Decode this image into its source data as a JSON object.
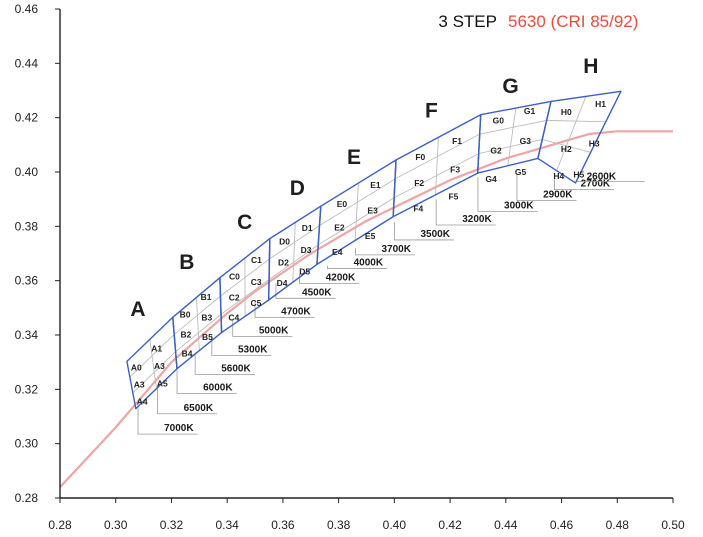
{
  "chart_data": {
    "type": "line",
    "title": "3 STEP",
    "subtitle": "5630 (CRI 85/92)",
    "colors": {
      "bins": "#3a5fc8",
      "locus": "#f2a3a3",
      "subtitle": "#ef4b3a",
      "callout": "#9a9a9a",
      "grid": "#bcbcbc"
    },
    "xlim": [
      0.28,
      0.5
    ],
    "ylim": [
      0.28,
      0.46
    ],
    "x_ticks": [
      "0.28",
      "0.30",
      "0.32",
      "0.34",
      "0.36",
      "0.38",
      "0.40",
      "0.42",
      "0.44",
      "0.46",
      "0.48",
      "0.50"
    ],
    "y_ticks": [
      "0.28",
      "0.30",
      "0.32",
      "0.34",
      "0.36",
      "0.38",
      "0.40",
      "0.42",
      "0.44",
      "0.46"
    ],
    "grid": false,
    "series": [
      {
        "type": "line",
        "points": [
          [
            0.28,
            0.284
          ],
          [
            0.29,
            0.295
          ],
          [
            0.3,
            0.306
          ],
          [
            0.31,
            0.318
          ],
          [
            0.32,
            0.33
          ],
          [
            0.33,
            0.339
          ],
          [
            0.34,
            0.348
          ],
          [
            0.35,
            0.356
          ],
          [
            0.36,
            0.363
          ],
          [
            0.37,
            0.37
          ],
          [
            0.38,
            0.376
          ],
          [
            0.39,
            0.382
          ],
          [
            0.4,
            0.387
          ],
          [
            0.41,
            0.392
          ],
          [
            0.42,
            0.397
          ],
          [
            0.43,
            0.401
          ],
          [
            0.44,
            0.405
          ],
          [
            0.45,
            0.408
          ],
          [
            0.46,
            0.411
          ],
          [
            0.47,
            0.414
          ],
          [
            0.48,
            0.415
          ],
          [
            0.5,
            0.415
          ]
        ]
      }
    ],
    "bins": [
      {
        "label": "A",
        "label_at": [
          0.308,
          0.347
        ],
        "corners": [
          [
            0.304,
            0.3303
          ],
          [
            0.3205,
            0.3465
          ],
          [
            0.322,
            0.3276
          ],
          [
            0.3072,
            0.3129
          ]
        ],
        "cells": [
          {
            "label": "A0",
            "at": [
              0.3074,
              0.3281
            ]
          },
          {
            "label": "A1",
            "at": [
              0.3147,
              0.335
            ]
          },
          {
            "label": "A3",
            "at": [
              0.3084,
              0.3217
            ]
          },
          {
            "label": "A3",
            "at": [
              0.3157,
              0.3285
            ]
          },
          {
            "label": "A4",
            "at": [
              0.3095,
              0.3155
            ]
          },
          {
            "label": "A5",
            "at": [
              0.3167,
              0.3221
            ]
          }
        ]
      },
      {
        "label": "B",
        "label_at": [
          0.3255,
          0.3643
        ],
        "corners": [
          [
            0.3205,
            0.3465
          ],
          [
            0.3374,
            0.3611
          ],
          [
            0.338,
            0.3409
          ],
          [
            0.322,
            0.3276
          ]
        ],
        "cells": [
          {
            "label": "B0",
            "at": [
              0.3249,
              0.3475
            ]
          },
          {
            "label": "B1",
            "at": [
              0.3324,
              0.3539
            ]
          },
          {
            "label": "B2",
            "at": [
              0.3252,
              0.3401
            ]
          },
          {
            "label": "B3",
            "at": [
              0.3327,
              0.3464
            ]
          },
          {
            "label": "B4",
            "at": [
              0.3256,
              0.3332
            ]
          },
          {
            "label": "B5",
            "at": [
              0.3329,
              0.3392
            ]
          }
        ]
      },
      {
        "label": "C",
        "label_at": [
          0.3463,
          0.379
        ],
        "corners": [
          [
            0.3374,
            0.3611
          ],
          [
            0.3553,
            0.3755
          ],
          [
            0.3549,
            0.3529
          ],
          [
            0.338,
            0.3409
          ]
        ],
        "cells": [
          {
            "label": "C0",
            "at": [
              0.3426,
              0.3615
            ]
          },
          {
            "label": "C1",
            "at": [
              0.3505,
              0.3676
            ]
          },
          {
            "label": "C2",
            "at": [
              0.3425,
              0.3538
            ]
          },
          {
            "label": "C3",
            "at": [
              0.3504,
              0.3595
            ]
          },
          {
            "label": "C4",
            "at": [
              0.3424,
              0.3465
            ]
          },
          {
            "label": "C5",
            "at": [
              0.3503,
              0.3518
            ]
          }
        ]
      },
      {
        "label": "D",
        "label_at": [
          0.3652,
          0.3915
        ],
        "corners": [
          [
            0.3553,
            0.3755
          ],
          [
            0.3736,
            0.3874
          ],
          [
            0.3722,
            0.366
          ],
          [
            0.3549,
            0.3529
          ]
        ],
        "cells": [
          {
            "label": "D0",
            "at": [
              0.3606,
              0.3745
            ]
          },
          {
            "label": "D1",
            "at": [
              0.3687,
              0.3794
            ]
          },
          {
            "label": "D2",
            "at": [
              0.3602,
              0.3667
            ]
          },
          {
            "label": "D3",
            "at": [
              0.3683,
              0.3713
            ]
          },
          {
            "label": "D4",
            "at": [
              0.3597,
              0.3592
            ]
          },
          {
            "label": "D5",
            "at": [
              0.3678,
              0.3634
            ]
          }
        ]
      },
      {
        "label": "E",
        "label_at": [
          0.3855,
          0.403
        ],
        "corners": [
          [
            0.3736,
            0.3874
          ],
          [
            0.4006,
            0.4044
          ],
          [
            0.3996,
            0.3836
          ],
          [
            0.3722,
            0.366
          ]
        ],
        "cells": [
          {
            "label": "E0",
            "at": [
              0.3812,
              0.3882
            ]
          },
          {
            "label": "E1",
            "at": [
              0.3932,
              0.3953
            ]
          },
          {
            "label": "E2",
            "at": [
              0.3803,
              0.3795
            ]
          },
          {
            "label": "E3",
            "at": [
              0.3922,
              0.3858
            ]
          },
          {
            "label": "E4",
            "at": [
              0.3795,
              0.3706
            ]
          },
          {
            "label": "E5",
            "at": [
              0.3913,
              0.3764
            ]
          }
        ]
      },
      {
        "label": "F",
        "label_at": [
          0.4133,
          0.42
        ],
        "corners": [
          [
            0.4006,
            0.4044
          ],
          [
            0.431,
            0.4211
          ],
          [
            0.4299,
            0.3996
          ],
          [
            0.3996,
            0.3836
          ]
        ],
        "cells": [
          {
            "label": "F0",
            "at": [
              0.4093,
              0.4055
            ]
          },
          {
            "label": "F1",
            "at": [
              0.4225,
              0.4115
            ]
          },
          {
            "label": "F2",
            "at": [
              0.4089,
              0.396
            ]
          },
          {
            "label": "F3",
            "at": [
              0.4218,
              0.401
            ]
          },
          {
            "label": "F4",
            "at": [
              0.4086,
              0.3865
            ]
          },
          {
            "label": "F5",
            "at": [
              0.4212,
              0.391
            ]
          }
        ]
      },
      {
        "label": "G",
        "label_at": [
          0.4417,
          0.429
        ],
        "corners": [
          [
            0.431,
            0.4211
          ],
          [
            0.4562,
            0.426
          ],
          [
            0.4515,
            0.405
          ],
          [
            0.4299,
            0.3996
          ]
        ],
        "cells": [
          {
            "label": "G0",
            "at": [
              0.4373,
              0.419
            ]
          },
          {
            "label": "G1",
            "at": [
              0.4485,
              0.4225
            ]
          },
          {
            "label": "G2",
            "at": [
              0.4365,
              0.408
            ]
          },
          {
            "label": "G3",
            "at": [
              0.447,
              0.4115
            ]
          },
          {
            "label": "G4",
            "at": [
              0.4347,
              0.3975
            ]
          },
          {
            "label": "G5",
            "at": [
              0.4453,
              0.4
            ]
          }
        ]
      },
      {
        "label": "H",
        "label_at": [
          0.4705,
          0.4364
        ],
        "corners": [
          [
            0.4562,
            0.426
          ],
          [
            0.4813,
            0.4297
          ],
          [
            0.465,
            0.396
          ],
          [
            0.4515,
            0.405
          ]
        ],
        "cells": [
          {
            "label": "H0",
            "at": [
              0.4617,
              0.422
            ]
          },
          {
            "label": "H1",
            "at": [
              0.474,
              0.425
            ]
          },
          {
            "label": "H2",
            "at": [
              0.4617,
              0.4085
            ]
          },
          {
            "label": "H3",
            "at": [
              0.4717,
              0.4105
            ]
          },
          {
            "label": "H4",
            "at": [
              0.459,
              0.3985
            ]
          },
          {
            "label": "H5",
            "at": [
              0.4662,
              0.399
            ]
          }
        ]
      }
    ],
    "cct_callouts": [
      {
        "label": "7000K",
        "from": [
          0.308,
          0.314
        ],
        "to": [
          0.31,
          0.3035
        ]
      },
      {
        "label": "6500K",
        "from": [
          0.315,
          0.321
        ],
        "to": [
          0.317,
          0.311
        ]
      },
      {
        "label": "6000K",
        "from": [
          0.322,
          0.327
        ],
        "to": [
          0.324,
          0.3185
        ]
      },
      {
        "label": "5600K",
        "from": [
          0.3285,
          0.3335
        ],
        "to": [
          0.3305,
          0.3255
        ]
      },
      {
        "label": "5300K",
        "from": [
          0.3345,
          0.34
        ],
        "to": [
          0.3365,
          0.3325
        ]
      },
      {
        "label": "5000K",
        "from": [
          0.342,
          0.3455
        ],
        "to": [
          0.344,
          0.3395
        ]
      },
      {
        "label": "4700K",
        "from": [
          0.35,
          0.3525
        ],
        "to": [
          0.352,
          0.3465
        ]
      },
      {
        "label": "4500K",
        "from": [
          0.3575,
          0.359
        ],
        "to": [
          0.3595,
          0.3535
        ]
      },
      {
        "label": "4200K",
        "from": [
          0.366,
          0.3625
        ],
        "to": [
          0.368,
          0.359
        ]
      },
      {
        "label": "4000K",
        "from": [
          0.376,
          0.3655
        ],
        "to": [
          0.378,
          0.3645
        ]
      },
      {
        "label": "3700K",
        "from": [
          0.386,
          0.372
        ],
        "to": [
          0.388,
          0.3695
        ]
      },
      {
        "label": "3500K",
        "from": [
          0.4,
          0.3815
        ],
        "to": [
          0.402,
          0.375
        ]
      },
      {
        "label": "3200K",
        "from": [
          0.415,
          0.39
        ],
        "to": [
          0.417,
          0.3805
        ]
      },
      {
        "label": "3000K",
        "from": [
          0.43,
          0.398
        ],
        "to": [
          0.432,
          0.3855
        ]
      },
      {
        "label": "2900K",
        "from": [
          0.444,
          0.399
        ],
        "to": [
          0.446,
          0.3895
        ]
      },
      {
        "label": "2700K",
        "from": [
          0.4575,
          0.3975
        ],
        "to": [
          0.4595,
          0.3935
        ]
      },
      {
        "label": "2600K",
        "from": [
          0.465,
          0.3965
        ],
        "to": [
          0.469,
          0.3965
        ]
      }
    ]
  }
}
